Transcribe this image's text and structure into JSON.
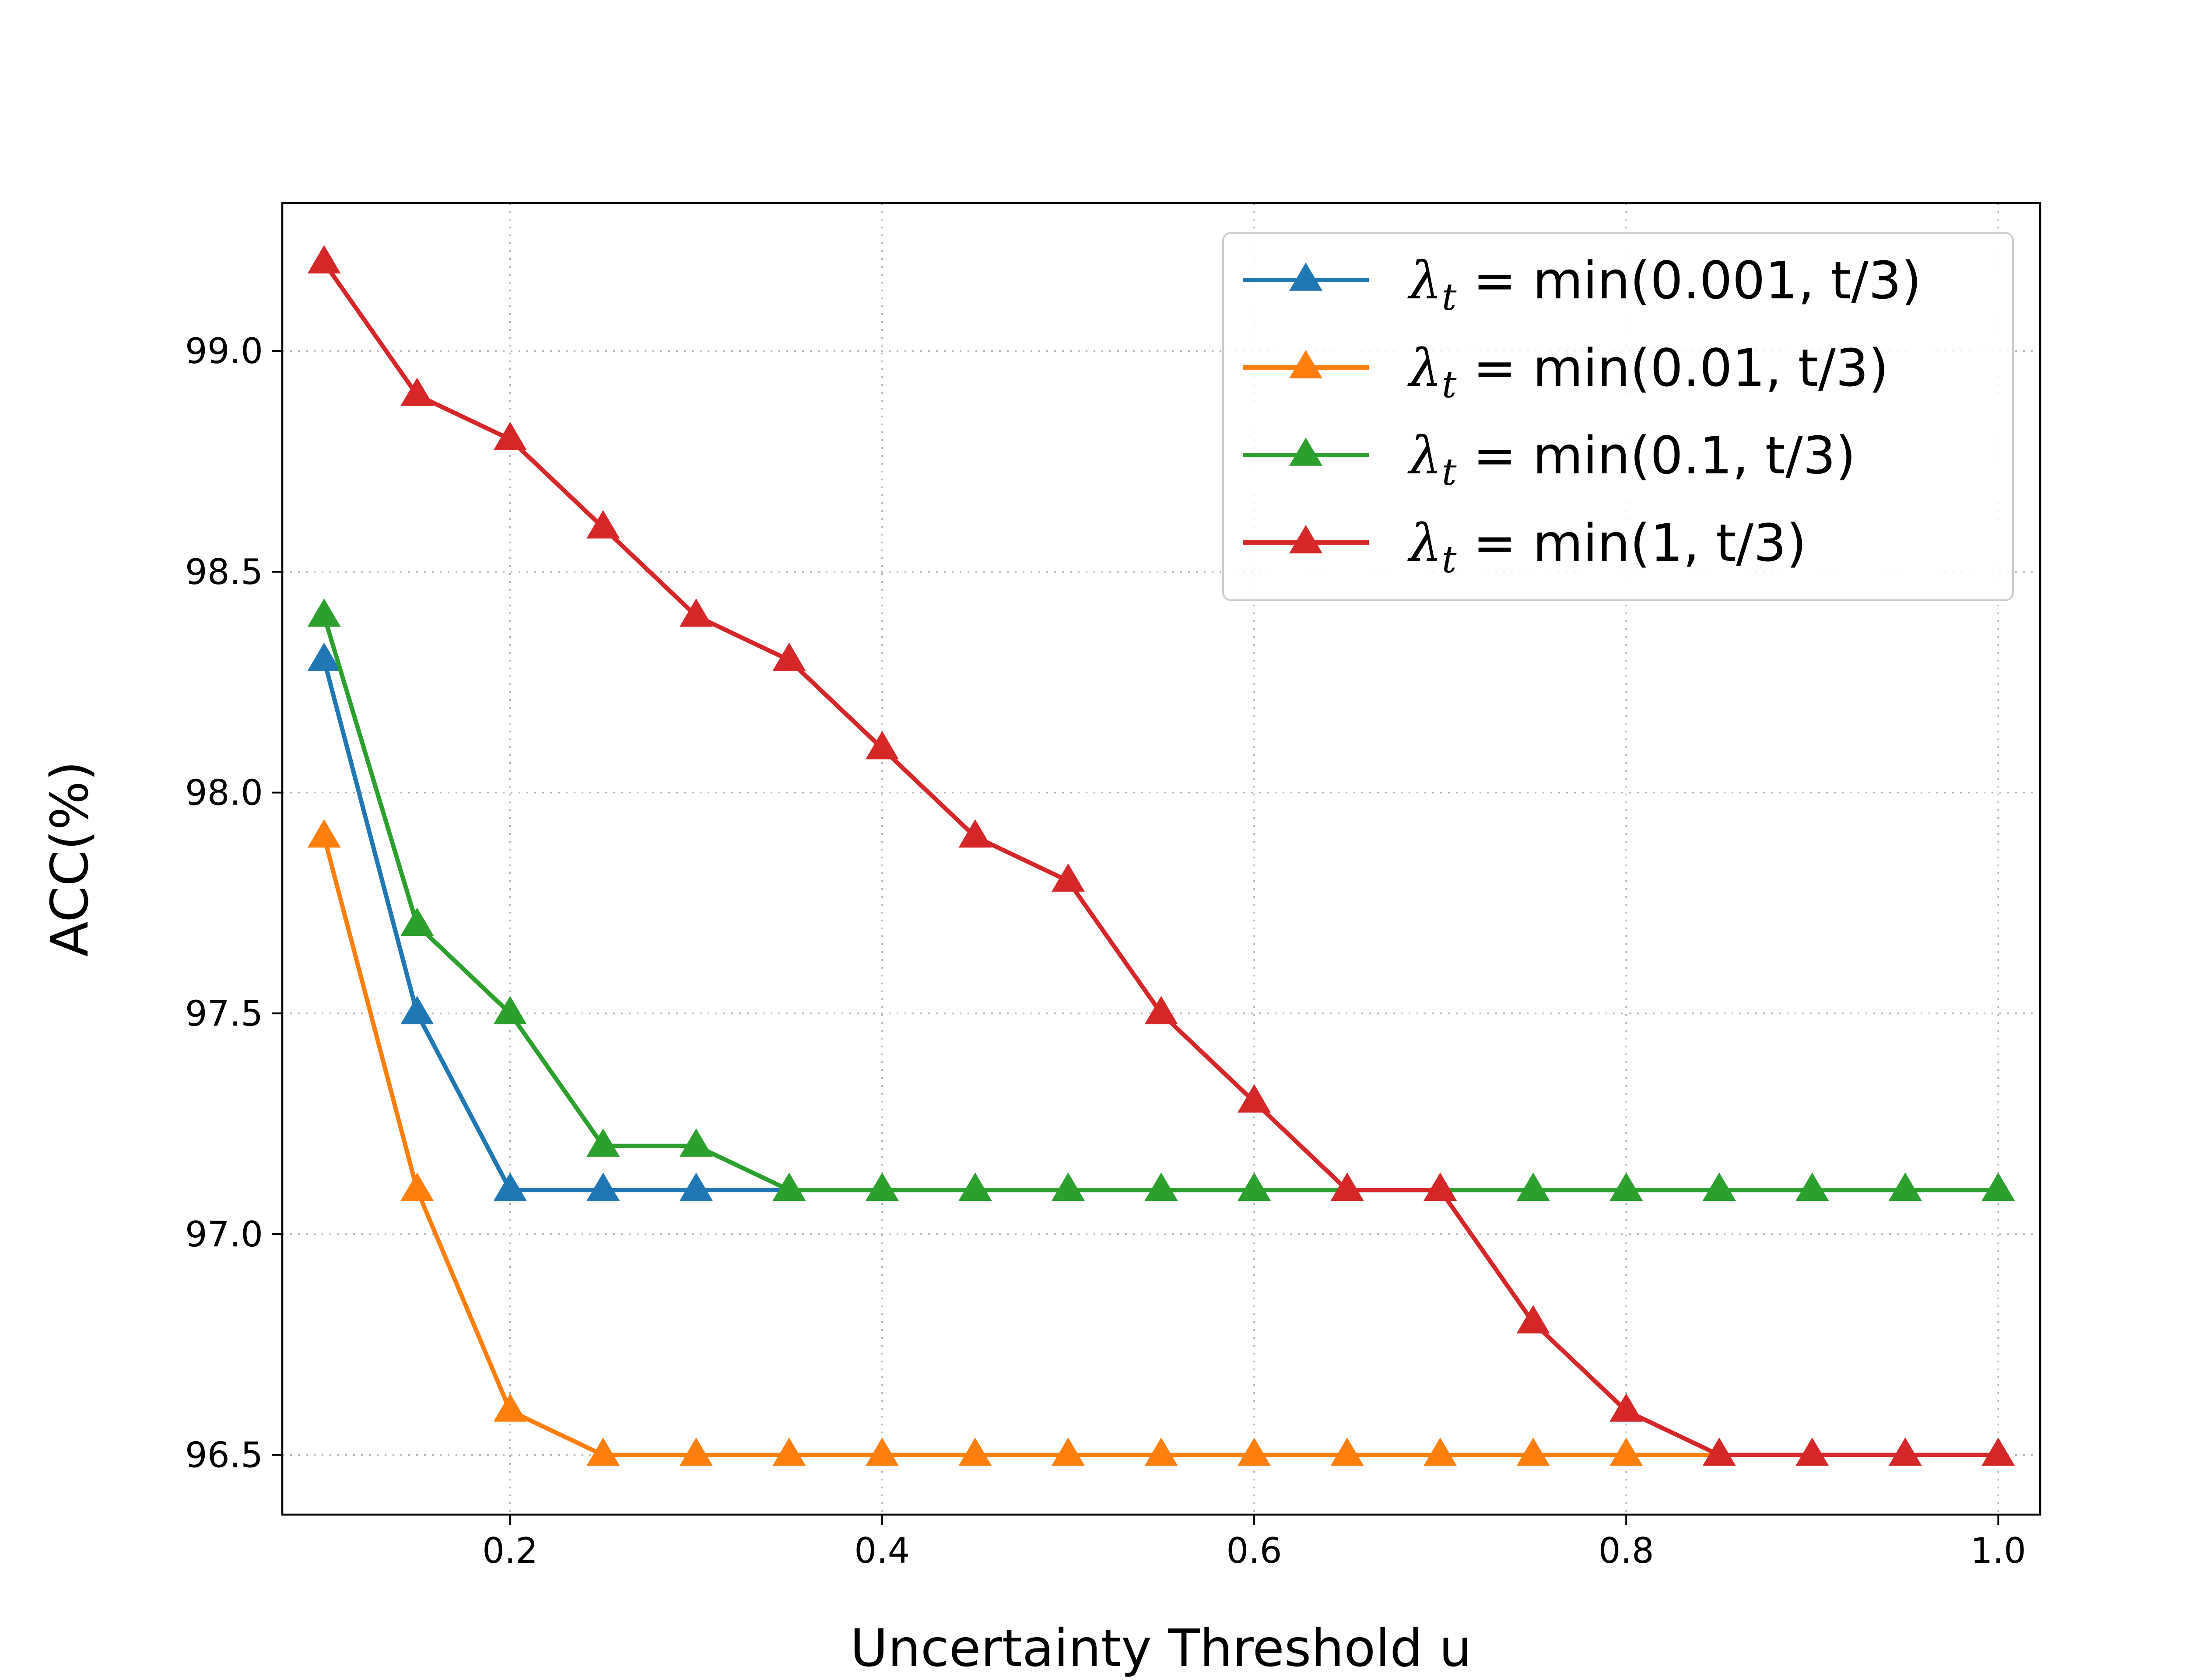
{
  "chart_data": {
    "type": "line",
    "title": "",
    "xlabel": "Uncertainty Threshold u",
    "ylabel": "ACC(%)",
    "xlim": [
      0.0775,
      1.0225
    ],
    "ylim": [
      96.365,
      99.335
    ],
    "xticks": [
      0.2,
      0.4,
      0.6,
      0.8,
      1.0
    ],
    "xtick_labels": [
      "0.2",
      "0.4",
      "0.6",
      "0.8",
      "1.0"
    ],
    "yticks": [
      96.5,
      97.0,
      97.5,
      98.0,
      98.5,
      99.0
    ],
    "ytick_labels": [
      "96.5",
      "97.0",
      "97.5",
      "98.0",
      "98.5",
      "99.0"
    ],
    "grid": true,
    "legend_position": "top-right",
    "marker": "triangle",
    "x": [
      0.1,
      0.15,
      0.2,
      0.25,
      0.3,
      0.35,
      0.4,
      0.45,
      0.5,
      0.55,
      0.6,
      0.65,
      0.7,
      0.75,
      0.8,
      0.85,
      0.9,
      0.95,
      1.0
    ],
    "series": [
      {
        "name": "λt = min(0.001, t/3)",
        "legend": {
          "symbol": "λ",
          "sub": "t",
          "rest": " = min(0.001, t/3)"
        },
        "color": "#1f77b4",
        "values": [
          98.3,
          97.5,
          97.1,
          97.1,
          97.1,
          97.1,
          97.1,
          97.1,
          97.1,
          97.1,
          97.1,
          97.1,
          97.1,
          97.1,
          97.1,
          97.1,
          97.1,
          97.1,
          97.1
        ]
      },
      {
        "name": "λt = min(0.01, t/3)",
        "legend": {
          "symbol": "λ",
          "sub": "t",
          "rest": " = min(0.01, t/3)"
        },
        "color": "#ff7f0e",
        "values": [
          97.9,
          97.1,
          96.6,
          96.5,
          96.5,
          96.5,
          96.5,
          96.5,
          96.5,
          96.5,
          96.5,
          96.5,
          96.5,
          96.5,
          96.5,
          96.5,
          96.5,
          96.5,
          96.5
        ]
      },
      {
        "name": "λt = min(0.1, t/3)",
        "legend": {
          "symbol": "λ",
          "sub": "t",
          "rest": " = min(0.1, t/3)"
        },
        "color": "#2ca02c",
        "values": [
          98.4,
          97.7,
          97.5,
          97.2,
          97.2,
          97.1,
          97.1,
          97.1,
          97.1,
          97.1,
          97.1,
          97.1,
          97.1,
          97.1,
          97.1,
          97.1,
          97.1,
          97.1,
          97.1
        ]
      },
      {
        "name": "λt = min(1, t/3)",
        "legend": {
          "symbol": "λ",
          "sub": "t",
          "rest": " = min(1, t/3)"
        },
        "color": "#d62728",
        "values": [
          99.2,
          98.9,
          98.8,
          98.6,
          98.4,
          98.3,
          98.1,
          97.9,
          97.8,
          97.5,
          97.3,
          97.1,
          97.1,
          96.8,
          96.6,
          96.5,
          96.5,
          96.5,
          96.5
        ]
      }
    ]
  }
}
